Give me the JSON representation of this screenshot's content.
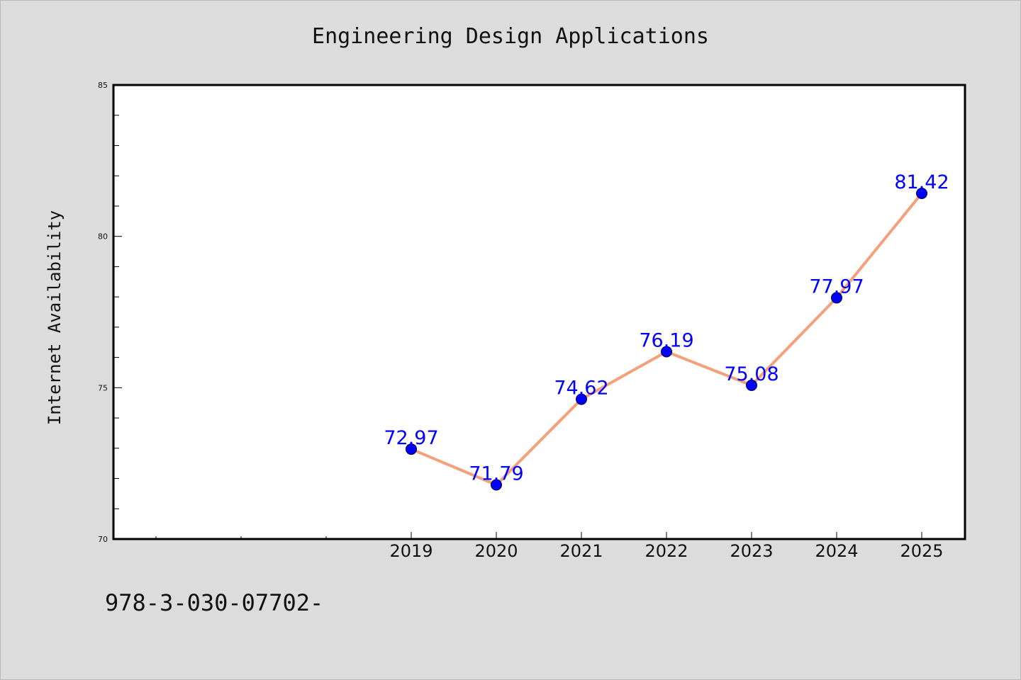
{
  "chart_data": {
    "type": "line",
    "title": "Engineering Design Applications",
    "xlabel": "",
    "ylabel": "Internet Availability",
    "categories": [
      "2019",
      "2020",
      "2021",
      "2022",
      "2023",
      "2024",
      "2025"
    ],
    "series": [
      {
        "values": [
          72.97,
          71.79,
          74.62,
          76.19,
          75.08,
          77.97,
          81.42
        ],
        "labels": [
          "72.97",
          "71.79",
          "74.62",
          "76.19",
          "75.08",
          "77.97",
          "81.42"
        ]
      }
    ],
    "ylim": [
      70,
      85
    ],
    "yticks": [
      "70",
      "75",
      "80",
      "85"
    ],
    "grid": false,
    "legend": "none",
    "colors": {
      "line": "#f4a07a",
      "marker": "#0000ff",
      "data_label": "#0000ff",
      "plot_background": "#ffffff",
      "figure_background": "#dcdcdc"
    }
  },
  "footer": {
    "code": "978-3-030-07702-"
  }
}
